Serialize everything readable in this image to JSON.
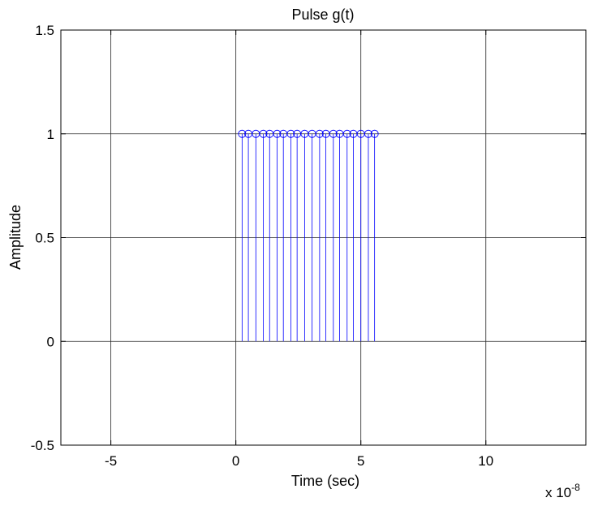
{
  "chart_data": {
    "type": "stem",
    "title": "Pulse g(t)",
    "xlabel": "Time (sec)",
    "ylabel": "Amplitude",
    "x_exponent_label": "x 10",
    "x_exponent_power": "-8",
    "x_scale": 1e-08,
    "xlim": [
      -7,
      14
    ],
    "ylim": [
      -0.5,
      1.5
    ],
    "xticks": [
      -5,
      0,
      5,
      10
    ],
    "xtick_labels": [
      "-5",
      "0",
      "5",
      "10"
    ],
    "yticks": [
      -0.5,
      0,
      0.5,
      1,
      1.5
    ],
    "ytick_labels": [
      "-0.5",
      "0",
      "0.5",
      "1",
      "1.5"
    ],
    "grid": true,
    "marker": "circle",
    "series_color": "#0000ff",
    "x": [
      0.25,
      0.5,
      0.8,
      1.1,
      1.35,
      1.65,
      1.9,
      2.2,
      2.45,
      2.75,
      3.05,
      3.35,
      3.6,
      3.9,
      4.15,
      4.45,
      4.7,
      5.0,
      5.3,
      5.55
    ],
    "y": [
      1,
      1,
      1,
      1,
      1,
      1,
      1,
      1,
      1,
      1,
      1,
      1,
      1,
      1,
      1,
      1,
      1,
      1,
      1,
      1
    ]
  }
}
